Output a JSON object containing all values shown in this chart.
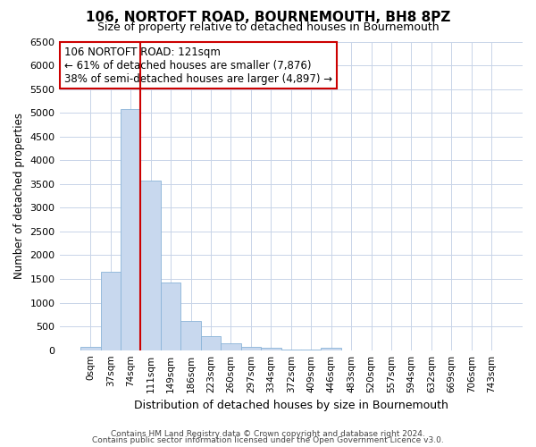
{
  "title": "106, NORTOFT ROAD, BOURNEMOUTH, BH8 8PZ",
  "subtitle": "Size of property relative to detached houses in Bournemouth",
  "xlabel": "Distribution of detached houses by size in Bournemouth",
  "ylabel": "Number of detached properties",
  "footer_line1": "Contains HM Land Registry data © Crown copyright and database right 2024.",
  "footer_line2": "Contains public sector information licensed under the Open Government Licence v3.0.",
  "bar_labels": [
    "0sqm",
    "37sqm",
    "74sqm",
    "111sqm",
    "149sqm",
    "186sqm",
    "223sqm",
    "260sqm",
    "297sqm",
    "334sqm",
    "372sqm",
    "409sqm",
    "446sqm",
    "483sqm",
    "520sqm",
    "557sqm",
    "594sqm",
    "632sqm",
    "669sqm",
    "706sqm",
    "743sqm"
  ],
  "bar_values": [
    60,
    1650,
    5080,
    3580,
    1420,
    610,
    290,
    150,
    60,
    50,
    10,
    5,
    50,
    0,
    0,
    0,
    0,
    0,
    0,
    0,
    0
  ],
  "bar_color": "#c8d8ee",
  "bar_edgecolor": "#8ab4d8",
  "grid_color": "#c8d4e8",
  "bg_color": "#ffffff",
  "vline_color": "#cc0000",
  "vline_x_index": 3,
  "annotation_text": "106 NORTOFT ROAD: 121sqm\n← 61% of detached houses are smaller (7,876)\n38% of semi-detached houses are larger (4,897) →",
  "annotation_box_facecolor": "#ffffff",
  "annotation_box_edgecolor": "#cc0000",
  "ylim": [
    0,
    6500
  ],
  "yticks": [
    0,
    500,
    1000,
    1500,
    2000,
    2500,
    3000,
    3500,
    4000,
    4500,
    5000,
    5500,
    6000,
    6500
  ]
}
